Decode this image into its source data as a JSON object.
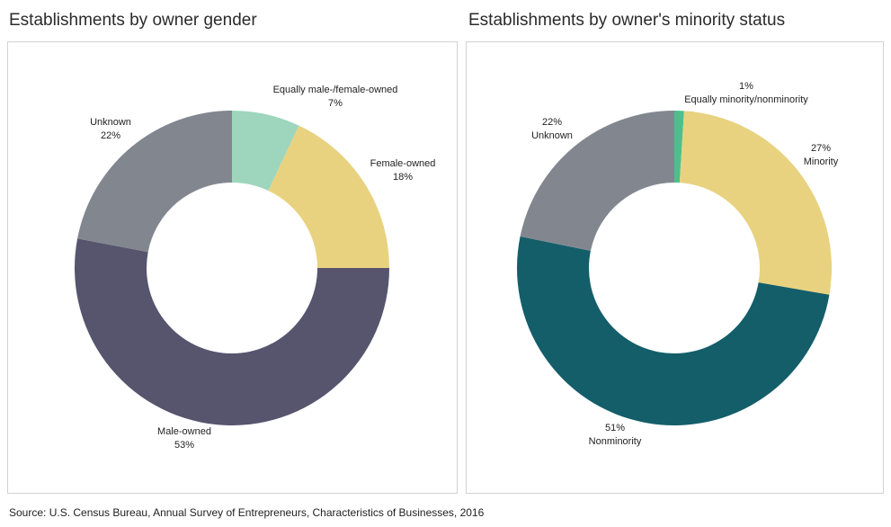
{
  "source": "Source: U.S. Census Bureau, Annual Survey of Entrepreneurs, Characteristics of Businesses, 2016",
  "chart_data": [
    {
      "type": "pie",
      "variant": "donut",
      "title": "Establishments by owner gender",
      "slices": [
        {
          "name": "Equally male-/female-owned",
          "value": 7,
          "label": "7%",
          "color": "#9ed5bd"
        },
        {
          "name": "Female-owned",
          "value": 18,
          "label": "18%",
          "color": "#e8d280"
        },
        {
          "name": "Male-owned",
          "value": 53,
          "label": "53%",
          "color": "#57546e"
        },
        {
          "name": "Unknown",
          "value": 22,
          "label": "22%",
          "color": "#82878f"
        }
      ]
    },
    {
      "type": "pie",
      "variant": "donut",
      "title": "Establishments by owner's minority status",
      "slices": [
        {
          "name": "Equally minority/nonminority",
          "value": 1,
          "label": "1%",
          "color": "#4dbf8d"
        },
        {
          "name": "Minority",
          "value": 27,
          "label": "27%",
          "color": "#e8d280"
        },
        {
          "name": "Nonminority",
          "value": 51,
          "label": "51%",
          "color": "#145e6a"
        },
        {
          "name": "Unknown",
          "value": 22,
          "label": "22%",
          "color": "#82878f"
        }
      ]
    }
  ]
}
